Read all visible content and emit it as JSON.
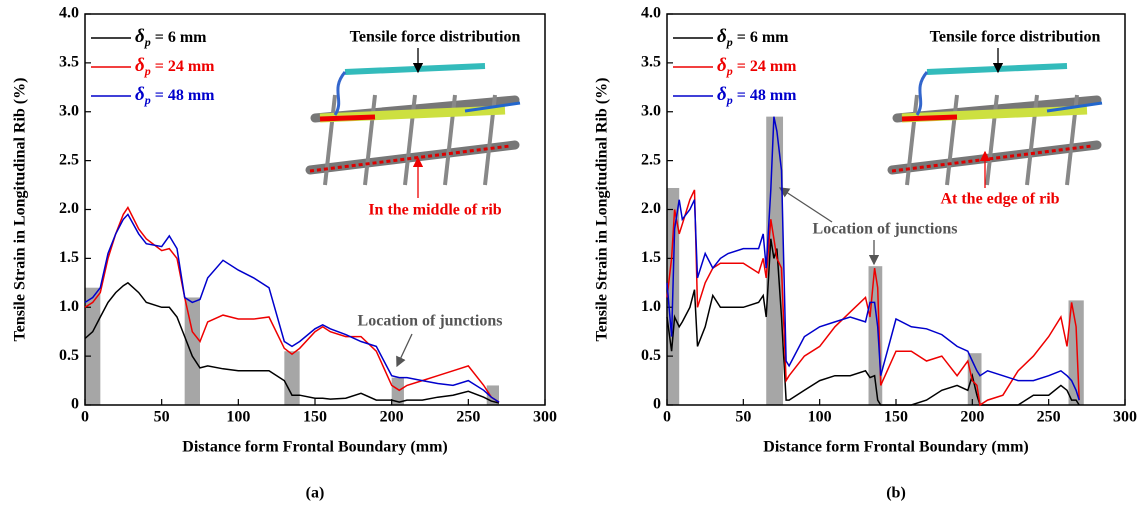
{
  "chart_data": [
    {
      "type": "line",
      "label": "(a)",
      "xlabel": "Distance form Frontal Boundary (mm)",
      "ylabel": "Tensile Strain in Longitudinal Rib (%)",
      "xlim": [
        0,
        300
      ],
      "xticks": [
        0,
        50,
        100,
        150,
        200,
        250,
        300
      ],
      "ylim": [
        0,
        4
      ],
      "yticks": [
        0,
        0.5,
        {
          "value": 1,
          "label": "1.0"
        },
        1.5,
        {
          "value": 2,
          "label": "2.0"
        },
        2.5,
        {
          "value": 3,
          "label": "3.0"
        },
        3.5,
        {
          "value": 4,
          "label": "4.0"
        }
      ],
      "x": [
        0,
        5,
        10,
        15,
        20,
        25,
        28,
        35,
        40,
        50,
        55,
        60,
        65,
        70,
        75,
        80,
        90,
        100,
        110,
        120,
        130,
        135,
        140,
        150,
        155,
        160,
        170,
        180,
        190,
        200,
        205,
        210,
        220,
        230,
        240,
        250,
        260,
        265,
        270
      ],
      "series": [
        {
          "name": "δp = 6 mm",
          "color": "#000000",
          "values": [
            0.68,
            0.75,
            0.9,
            1.05,
            1.15,
            1.22,
            1.25,
            1.15,
            1.05,
            1.0,
            1.0,
            0.9,
            0.7,
            0.5,
            0.38,
            0.4,
            0.37,
            0.35,
            0.35,
            0.35,
            0.25,
            0.1,
            0.1,
            0.07,
            0.07,
            0.06,
            0.07,
            0.12,
            0.05,
            0.05,
            0.03,
            0.05,
            0.05,
            0.08,
            0.1,
            0.14,
            0.08,
            0.04,
            0.02
          ]
        },
        {
          "name": "δp = 24 mm",
          "color": "#ee0000",
          "values": [
            1.0,
            1.05,
            1.15,
            1.5,
            1.75,
            1.95,
            2.02,
            1.8,
            1.7,
            1.58,
            1.6,
            1.5,
            1.1,
            0.75,
            0.65,
            0.85,
            0.92,
            0.88,
            0.88,
            0.9,
            0.58,
            0.52,
            0.58,
            0.75,
            0.8,
            0.75,
            0.7,
            0.7,
            0.55,
            0.2,
            0.15,
            0.2,
            0.25,
            0.3,
            0.35,
            0.4,
            0.2,
            0.08,
            0.03
          ]
        },
        {
          "name": "δp = 48 mm",
          "color": "#0000cc",
          "values": [
            1.05,
            1.1,
            1.2,
            1.55,
            1.75,
            1.9,
            1.95,
            1.75,
            1.65,
            1.62,
            1.73,
            1.6,
            1.1,
            1.05,
            1.08,
            1.3,
            1.48,
            1.38,
            1.3,
            1.2,
            0.65,
            0.6,
            0.65,
            0.78,
            0.82,
            0.78,
            0.72,
            0.65,
            0.6,
            0.3,
            0.28,
            0.28,
            0.25,
            0.22,
            0.2,
            0.25,
            0.15,
            0.08,
            0.03
          ]
        }
      ],
      "junctions": {
        "color": "#a6a6a6",
        "x0": [
          0,
          65,
          130,
          200,
          262
        ],
        "x1": [
          10,
          75,
          140,
          208,
          270
        ],
        "values": [
          1.2,
          1.1,
          0.55,
          0.28,
          0.2
        ]
      },
      "annotations": [
        "Tensile force distribution",
        "In the middle of rib",
        "Location of junctions"
      ]
    },
    {
      "type": "line",
      "label": "(b)",
      "xlabel": "Distance form Frontal Boundary (mm)",
      "ylabel": "Tensile Strain in Longitudinal Rib (%)",
      "xlim": [
        0,
        300
      ],
      "xticks": [
        0,
        50,
        100,
        150,
        200,
        250,
        300
      ],
      "ylim": [
        0,
        4
      ],
      "yticks": [
        0,
        0.5,
        {
          "value": 1,
          "label": "1.0"
        },
        1.5,
        {
          "value": 2,
          "label": "2.0"
        },
        2.5,
        {
          "value": 3,
          "label": "3.0"
        },
        3.5,
        {
          "value": 4,
          "label": "4.0"
        }
      ],
      "x": [
        0,
        3,
        5,
        8,
        10,
        15,
        18,
        20,
        25,
        30,
        35,
        40,
        50,
        60,
        63,
        65,
        68,
        70,
        72,
        75,
        78,
        80,
        90,
        100,
        110,
        120,
        130,
        133,
        136,
        138,
        140,
        150,
        160,
        170,
        180,
        190,
        197,
        200,
        203,
        205,
        210,
        220,
        230,
        240,
        250,
        258,
        262,
        265,
        268,
        270
      ],
      "series": [
        {
          "name": "δp = 6 mm",
          "color": "#000000",
          "values": [
            0.9,
            0.55,
            0.9,
            0.8,
            0.85,
            1.0,
            1.18,
            0.6,
            0.8,
            1.12,
            1.0,
            1.0,
            1.0,
            1.05,
            1.12,
            0.9,
            1.7,
            1.5,
            1.6,
            0.9,
            0.05,
            0.05,
            0.15,
            0.25,
            0.3,
            0.3,
            0.35,
            0.28,
            0.3,
            0.05,
            0,
            0,
            0,
            0.05,
            0.15,
            0.2,
            0.15,
            0.3,
            0.1,
            0,
            0,
            0,
            0,
            0.1,
            0.1,
            0.2,
            0.15,
            0.05,
            0.05,
            0
          ]
        },
        {
          "name": "δp = 24 mm",
          "color": "#ee0000",
          "values": [
            1.1,
            1.5,
            2.0,
            1.75,
            1.85,
            2.1,
            2.2,
            1.0,
            1.25,
            1.4,
            1.45,
            1.45,
            1.45,
            1.35,
            1.5,
            1.3,
            1.9,
            1.7,
            1.5,
            1.4,
            0.25,
            0.3,
            0.5,
            0.6,
            0.8,
            0.95,
            1.1,
            0.9,
            1.4,
            1.2,
            0.2,
            0.55,
            0.55,
            0.45,
            0.5,
            0.3,
            0.45,
            0.25,
            0.2,
            0,
            0.05,
            0.1,
            0.35,
            0.5,
            0.7,
            0.9,
            0.6,
            1.05,
            0.8,
            0.05
          ]
        },
        {
          "name": "δp = 48 mm",
          "color": "#0000cc",
          "values": [
            1.25,
            0.7,
            1.8,
            2.1,
            1.9,
            2.0,
            2.1,
            1.3,
            1.55,
            1.4,
            1.5,
            1.55,
            1.6,
            1.6,
            1.75,
            1.4,
            2.2,
            2.95,
            2.8,
            2.4,
            0.45,
            0.4,
            0.7,
            0.8,
            0.85,
            0.9,
            0.85,
            1.05,
            1.05,
            0.8,
            0.3,
            0.88,
            0.8,
            0.78,
            0.72,
            0.6,
            0.55,
            0.45,
            0.35,
            0.3,
            0.35,
            0.3,
            0.25,
            0.25,
            0.3,
            0.35,
            0.3,
            0.25,
            0.15,
            0.05
          ]
        }
      ],
      "junctions": {
        "color": "#a6a6a6",
        "x0": [
          0,
          65,
          132,
          197,
          263
        ],
        "x1": [
          8,
          76,
          141,
          206,
          273
        ],
        "values": [
          2.22,
          2.95,
          1.42,
          0.53,
          1.07
        ]
      },
      "annotations": [
        "Tensile force distribution",
        "At the edge of rib",
        "Location of junctions"
      ]
    }
  ]
}
